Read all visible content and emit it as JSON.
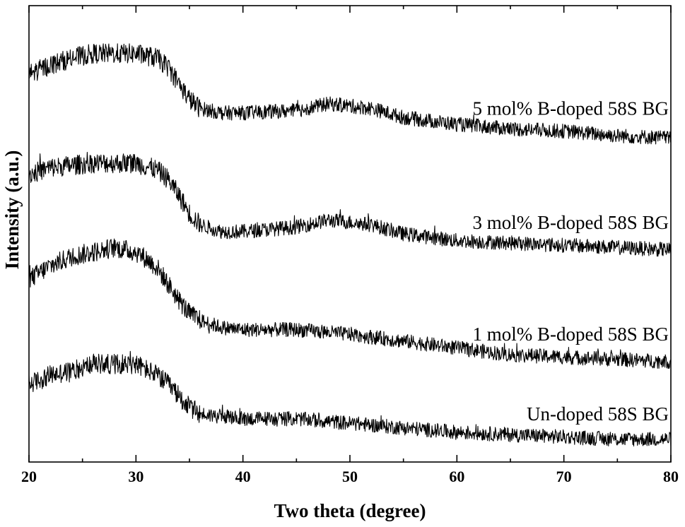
{
  "chart_data": {
    "type": "line",
    "title": "",
    "xlabel": "Two theta (degree)",
    "ylabel": "Intensity (a.u.)",
    "xlim": [
      20,
      80
    ],
    "xticks": [
      20,
      30,
      40,
      50,
      60,
      70,
      80
    ],
    "ylim": [
      0,
      100
    ],
    "y_ticks_labeled": false,
    "grid": false,
    "legend": "none",
    "series_label_placement": "right, above each trace",
    "line_color": "#000000",
    "series": [
      {
        "name": "Un-doped 58S BG",
        "x": [
          20,
          22,
          24,
          26,
          28,
          30,
          32,
          33,
          34,
          35,
          36,
          38,
          40,
          45,
          50,
          55,
          60,
          65,
          70,
          75,
          80
        ],
        "y": [
          17,
          19,
          20,
          21.5,
          21.5,
          21.5,
          19,
          17,
          14.5,
          12,
          10.5,
          10,
          9.5,
          9.5,
          8.5,
          7.5,
          6.5,
          6,
          5.5,
          5,
          5
        ]
      },
      {
        "name": "1 mol% B-doped 58S BG",
        "x": [
          20,
          22,
          24,
          26,
          28,
          30,
          31,
          32,
          33,
          34,
          35,
          36,
          38,
          40,
          45,
          50,
          55,
          60,
          65,
          70,
          75,
          80
        ],
        "y": [
          40,
          43,
          45,
          46,
          47,
          46,
          44.5,
          42.5,
          39,
          35.5,
          32.5,
          31,
          29.5,
          29,
          29,
          28,
          26.5,
          25,
          23.5,
          23,
          22.5,
          22
        ]
      },
      {
        "name": "3 mol% B-doped 58S BG",
        "x": [
          20,
          22,
          24,
          26,
          28,
          30,
          32,
          33,
          34,
          35,
          36,
          38,
          40,
          45,
          48,
          52,
          55,
          60,
          65,
          70,
          75,
          80
        ],
        "y": [
          63,
          64.5,
          65,
          65.5,
          65.5,
          65.5,
          64,
          62,
          58.5,
          54.5,
          52,
          50.5,
          50.5,
          51.5,
          53,
          52,
          50,
          48.5,
          48,
          47.5,
          47,
          46.5
        ]
      },
      {
        "name": "5 mol% B-doped 58S BG",
        "x": [
          20,
          22,
          24,
          26,
          28,
          30,
          32,
          33,
          34,
          35,
          36,
          38,
          40,
          45,
          48,
          52,
          55,
          60,
          65,
          70,
          75,
          80
        ],
        "y": [
          85,
          87,
          88.5,
          89.5,
          89.5,
          89.5,
          88.5,
          86.5,
          83,
          79.5,
          77.5,
          76.5,
          76.5,
          77,
          78.5,
          77.5,
          75.5,
          74,
          73,
          72.5,
          71.5,
          71
        ]
      }
    ]
  }
}
